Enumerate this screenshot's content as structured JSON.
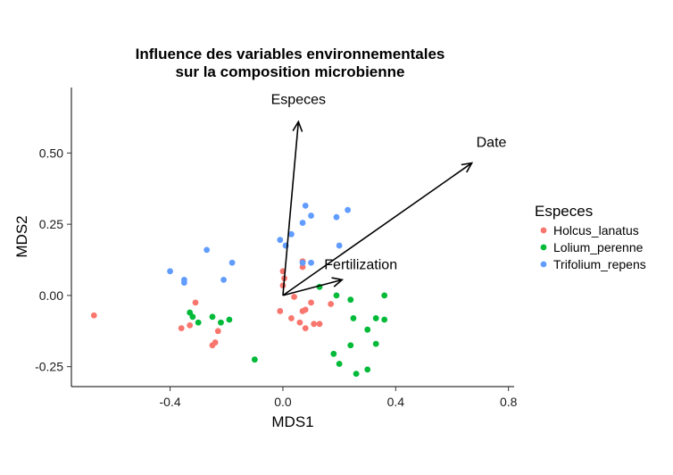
{
  "chart_data": {
    "type": "scatter",
    "title": [
      "Influence des variables environnementales",
      "sur la composition microbienne"
    ],
    "xlabel": "MDS1",
    "ylabel": "MDS2",
    "xlim": [
      -0.75,
      0.82
    ],
    "ylim": [
      -0.32,
      0.73
    ],
    "x_ticks": [
      -0.4,
      0.0,
      0.4,
      0.8
    ],
    "x_tick_labels": [
      "-0.4",
      "0.0",
      "0.4",
      "0.8"
    ],
    "y_ticks": [
      -0.25,
      0.0,
      0.25,
      0.5
    ],
    "y_tick_labels": [
      "-0.25",
      "0.00",
      "0.25",
      "0.50"
    ],
    "grid": false,
    "legend": {
      "title": "Especes",
      "placement": "right"
    },
    "series": [
      {
        "name": "Holcus_lanatus",
        "color": "#F8766D",
        "points": [
          [
            -0.67,
            -0.07
          ],
          [
            -0.36,
            -0.115
          ],
          [
            -0.33,
            -0.105
          ],
          [
            -0.31,
            -0.025
          ],
          [
            -0.25,
            -0.175
          ],
          [
            -0.24,
            -0.165
          ],
          [
            -0.23,
            -0.125
          ],
          [
            0.0,
            0.035
          ],
          [
            0.005,
            0.06
          ],
          [
            0.0,
            0.085
          ],
          [
            -0.01,
            -0.055
          ],
          [
            0.04,
            -0.005
          ],
          [
            0.03,
            -0.08
          ],
          [
            0.07,
            -0.055
          ],
          [
            0.08,
            -0.05
          ],
          [
            0.1,
            -0.025
          ],
          [
            0.06,
            -0.095
          ],
          [
            0.08,
            -0.115
          ],
          [
            0.11,
            -0.1
          ],
          [
            0.13,
            -0.1
          ],
          [
            0.17,
            -0.03
          ],
          [
            0.07,
            0.12
          ],
          [
            0.07,
            0.1
          ]
        ]
      },
      {
        "name": "Lolium_perenne",
        "color": "#00BA38",
        "points": [
          [
            -0.33,
            -0.06
          ],
          [
            -0.32,
            -0.075
          ],
          [
            -0.3,
            -0.095
          ],
          [
            -0.25,
            -0.075
          ],
          [
            -0.22,
            -0.095
          ],
          [
            -0.19,
            -0.085
          ],
          [
            -0.1,
            -0.225
          ],
          [
            0.13,
            0.03
          ],
          [
            0.19,
            0.0
          ],
          [
            0.24,
            -0.015
          ],
          [
            0.36,
            0.0
          ],
          [
            0.25,
            -0.08
          ],
          [
            0.36,
            -0.085
          ],
          [
            0.18,
            -0.205
          ],
          [
            0.2,
            -0.24
          ],
          [
            0.24,
            -0.175
          ],
          [
            0.26,
            -0.275
          ],
          [
            0.3,
            -0.26
          ],
          [
            0.33,
            -0.08
          ],
          [
            0.33,
            -0.17
          ],
          [
            0.3,
            -0.12
          ]
        ]
      },
      {
        "name": "Trifolium_repens",
        "color": "#619CFF",
        "points": [
          [
            -0.4,
            0.085
          ],
          [
            -0.35,
            0.055
          ],
          [
            -0.35,
            0.045
          ],
          [
            -0.27,
            0.16
          ],
          [
            -0.21,
            0.055
          ],
          [
            -0.18,
            0.115
          ],
          [
            -0.01,
            0.195
          ],
          [
            0.01,
            0.175
          ],
          [
            0.03,
            0.215
          ],
          [
            0.07,
            0.255
          ],
          [
            0.08,
            0.315
          ],
          [
            0.1,
            0.28
          ],
          [
            0.07,
            0.115
          ],
          [
            0.1,
            0.115
          ],
          [
            0.19,
            0.275
          ],
          [
            0.2,
            0.175
          ],
          [
            0.23,
            0.3
          ]
        ]
      }
    ],
    "arrows": [
      {
        "label": "Especes",
        "from": [
          0.0,
          0.0
        ],
        "to": [
          0.055,
          0.61
        ]
      },
      {
        "label": "Date",
        "from": [
          0.0,
          0.0
        ],
        "to": [
          0.67,
          0.465
        ]
      },
      {
        "label": "Fertilization",
        "from": [
          0.0,
          0.0
        ],
        "to": [
          0.21,
          0.055
        ]
      }
    ]
  }
}
